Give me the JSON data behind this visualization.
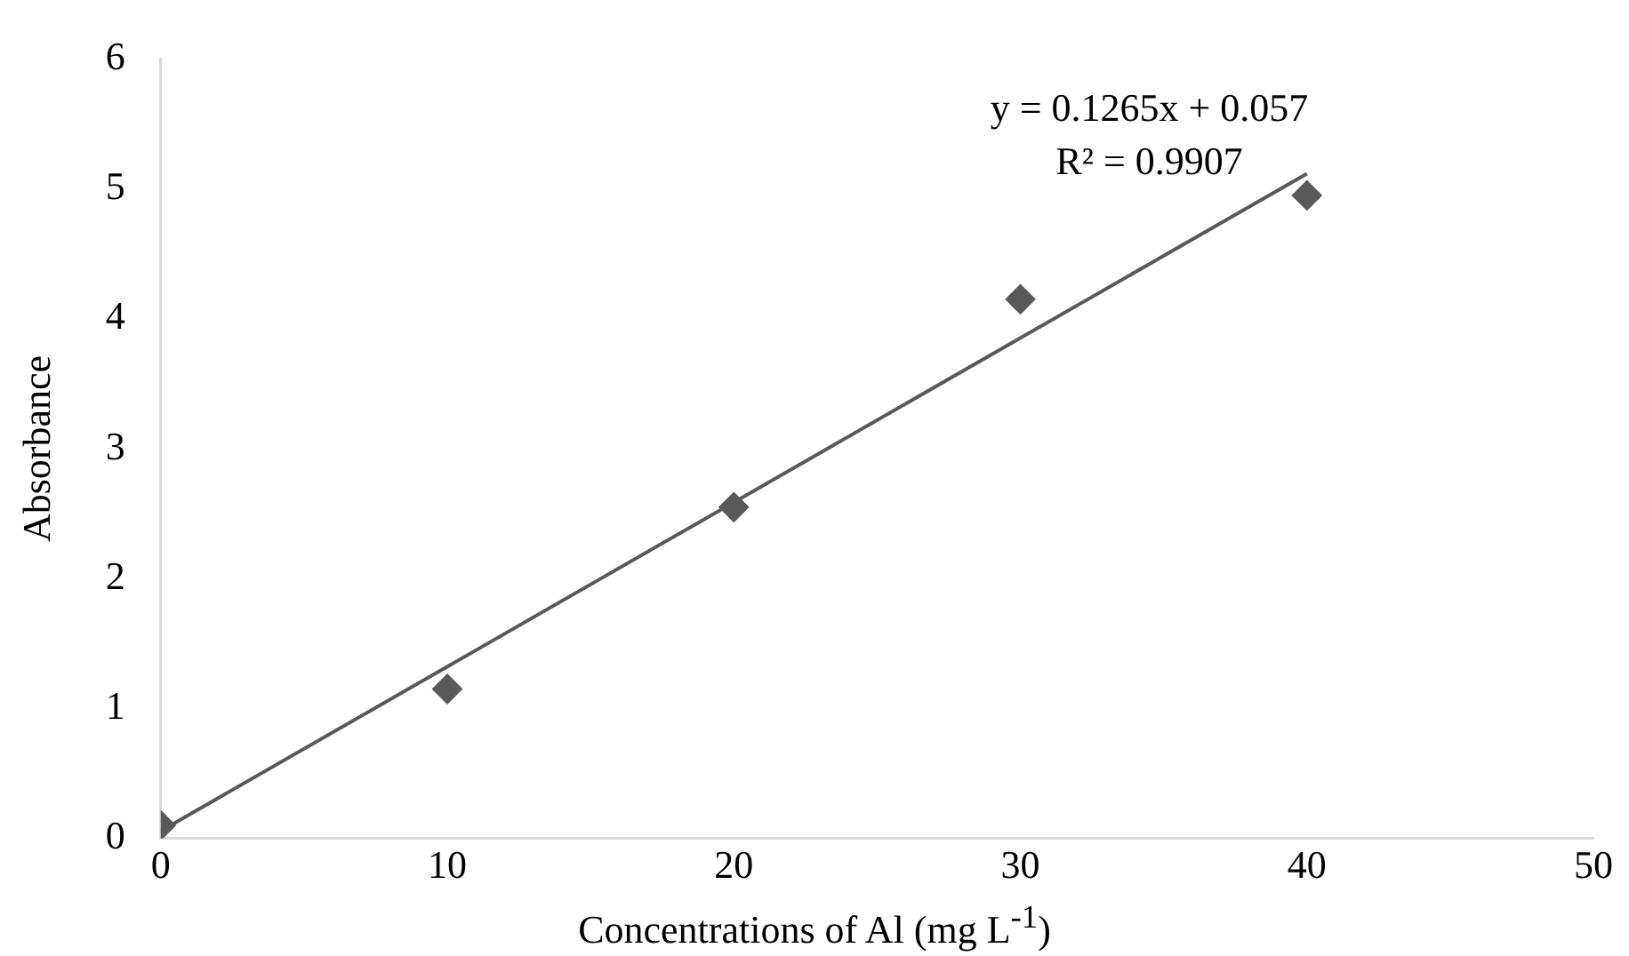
{
  "chart_data": {
    "type": "scatter",
    "xlabel": "Concentrations of Al (mg L$^{-1}$)",
    "ylabel": "Absorbance",
    "x": [
      0,
      10,
      20,
      30,
      40
    ],
    "series": [
      {
        "color": "#595959",
        "values": [
          0.1,
          1.15,
          2.55,
          4.15,
          4.95
        ],
        "marker": "diamond"
      },
      {
        "type": "line",
        "color": "#595959",
        "x": [
          0,
          40
        ],
        "values": [
          0.057,
          5.117
        ],
        "marker": "none"
      }
    ],
    "xlim": [
      0,
      50
    ],
    "xticks": [
      0,
      10,
      20,
      30,
      40,
      50
    ],
    "ylim": [
      0,
      6
    ],
    "yticks": [
      0,
      1,
      2,
      3,
      4,
      5,
      6
    ],
    "annotations": [
      "y = 0.1265x + 0.057",
      "R² = 0.9907"
    ],
    "grid": false,
    "legend": false
  }
}
